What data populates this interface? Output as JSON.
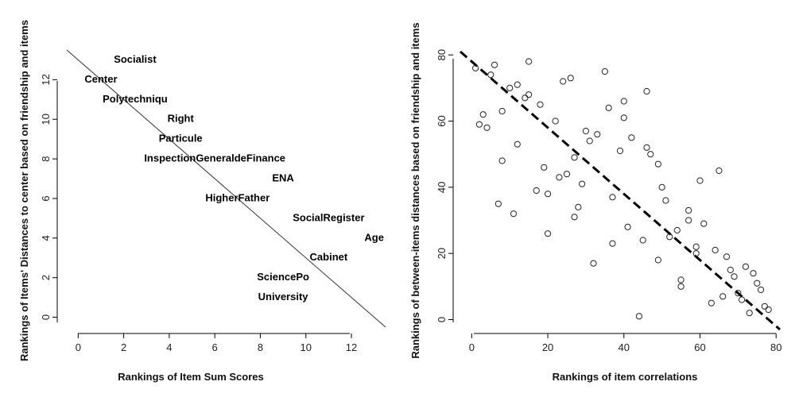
{
  "chart_data": [
    {
      "type": "scatter",
      "xlabel": "Rankings of Item Sum Scores",
      "ylabel": "Rankings of Items' Distances to center based on friendship and items",
      "xlim": [
        -0.5,
        13.5
      ],
      "ylim": [
        -0.5,
        13.5
      ],
      "xticks": [
        0,
        2,
        4,
        6,
        8,
        10,
        12
      ],
      "yticks": [
        0,
        2,
        4,
        6,
        8,
        10,
        12
      ],
      "points": [
        {
          "label": "Socialist",
          "x": 2.5,
          "y": 13
        },
        {
          "label": "Center",
          "x": 1.0,
          "y": 12
        },
        {
          "label": "Polytechniqu",
          "x": 2.5,
          "y": 11
        },
        {
          "label": "Right",
          "x": 4.5,
          "y": 10
        },
        {
          "label": "Particule",
          "x": 4.5,
          "y": 9
        },
        {
          "label": "InspectionGeneraldeFinance",
          "x": 6.0,
          "y": 8
        },
        {
          "label": "ENA",
          "x": 9.0,
          "y": 7
        },
        {
          "label": "HigherFather",
          "x": 7.0,
          "y": 6
        },
        {
          "label": "SocialRegister",
          "x": 11.0,
          "y": 5
        },
        {
          "label": "Age",
          "x": 13.0,
          "y": 4
        },
        {
          "label": "Cabinet",
          "x": 11.0,
          "y": 3
        },
        {
          "label": "SciencePo",
          "x": 9.0,
          "y": 2
        },
        {
          "label": "University",
          "x": 9.0,
          "y": 1
        }
      ],
      "reference_line": {
        "x": [
          -0.5,
          13.5
        ],
        "y": [
          13.5,
          -0.5
        ],
        "style": "solid"
      }
    },
    {
      "type": "scatter",
      "xlabel": "Rankings of item correlations",
      "ylabel": "Rankings of between-items distances based on friendship and items",
      "xlim": [
        -3,
        81
      ],
      "ylim": [
        -3,
        81
      ],
      "xticks": [
        0,
        20,
        40,
        60,
        80
      ],
      "yticks": [
        0,
        20,
        40,
        60,
        80
      ],
      "points": [
        [
          1,
          76
        ],
        [
          2,
          59
        ],
        [
          3,
          62
        ],
        [
          4,
          58
        ],
        [
          5,
          74
        ],
        [
          6,
          77
        ],
        [
          7,
          35
        ],
        [
          8,
          63
        ],
        [
          8,
          48
        ],
        [
          10,
          70
        ],
        [
          11,
          32
        ],
        [
          12,
          71
        ],
        [
          12,
          53
        ],
        [
          14,
          67
        ],
        [
          15,
          68
        ],
        [
          15,
          78
        ],
        [
          17,
          39
        ],
        [
          18,
          65
        ],
        [
          19,
          46
        ],
        [
          20,
          38
        ],
        [
          20,
          26
        ],
        [
          22,
          60
        ],
        [
          23,
          43
        ],
        [
          24,
          72
        ],
        [
          25,
          44
        ],
        [
          26,
          73
        ],
        [
          27,
          49
        ],
        [
          27,
          31
        ],
        [
          28,
          34
        ],
        [
          29,
          41
        ],
        [
          30,
          57
        ],
        [
          31,
          54
        ],
        [
          32,
          17
        ],
        [
          33,
          56
        ],
        [
          35,
          75
        ],
        [
          36,
          64
        ],
        [
          37,
          23
        ],
        [
          37,
          37
        ],
        [
          39,
          51
        ],
        [
          40,
          66
        ],
        [
          40,
          61
        ],
        [
          41,
          28
        ],
        [
          42,
          55
        ],
        [
          44,
          1
        ],
        [
          45,
          24
        ],
        [
          46,
          69
        ],
        [
          46,
          52
        ],
        [
          47,
          50
        ],
        [
          49,
          47
        ],
        [
          49,
          18
        ],
        [
          50,
          40
        ],
        [
          51,
          36
        ],
        [
          52,
          25
        ],
        [
          54,
          27
        ],
        [
          55,
          12
        ],
        [
          55,
          10
        ],
        [
          57,
          33
        ],
        [
          57,
          30
        ],
        [
          59,
          22
        ],
        [
          59,
          20
        ],
        [
          60,
          42
        ],
        [
          61,
          29
        ],
        [
          63,
          5
        ],
        [
          64,
          21
        ],
        [
          65,
          45
        ],
        [
          66,
          7
        ],
        [
          67,
          19
        ],
        [
          68,
          15
        ],
        [
          69,
          13
        ],
        [
          70,
          8
        ],
        [
          71,
          6
        ],
        [
          72,
          16
        ],
        [
          73,
          2
        ],
        [
          74,
          14
        ],
        [
          75,
          11
        ],
        [
          76,
          9
        ],
        [
          77,
          4
        ],
        [
          78,
          3
        ]
      ],
      "reference_line": {
        "x": [
          -3,
          81
        ],
        "y": [
          81,
          -3
        ],
        "style": "dashed"
      }
    }
  ]
}
